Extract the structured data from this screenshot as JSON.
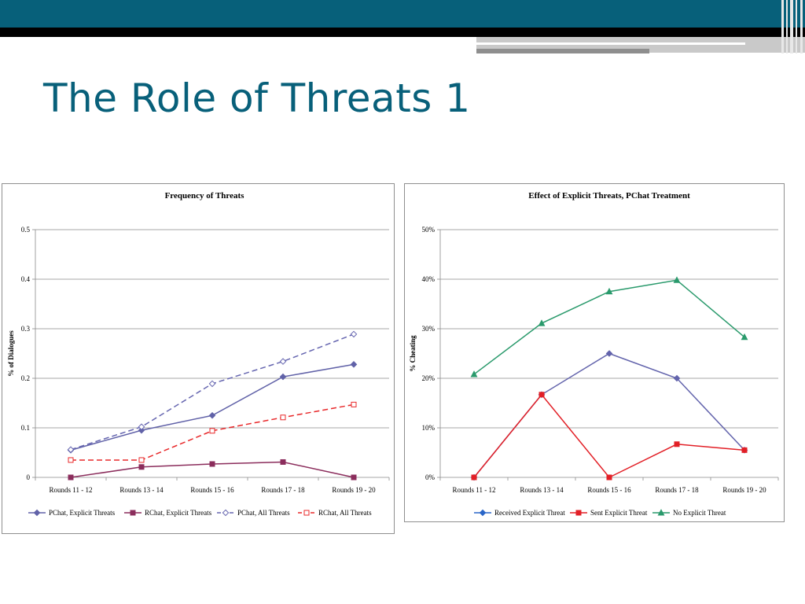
{
  "slide": {
    "title": "The Role of Threats 1"
  },
  "colors": {
    "header_teal": "#07607a",
    "title": "#08607a"
  },
  "chart_data": [
    {
      "type": "line",
      "title": "Frequency of Threats",
      "ylabel": "% of Dialogues",
      "xlabel": "",
      "categories": [
        "Rounds 11 - 12",
        "Rounds 13 - 14",
        "Rounds 15 - 16",
        "Rounds 17 - 18",
        "Rounds 19 - 20"
      ],
      "ylim": [
        0,
        0.5
      ],
      "yticks": [
        0,
        0.1,
        0.2,
        0.3,
        0.4,
        0.5
      ],
      "ytick_labels": [
        "0",
        "0.1",
        "0.2",
        "0.3",
        "0.4",
        "0.5"
      ],
      "grid": true,
      "legend": "bottom",
      "series": [
        {
          "name": "PChat, Explicit Threats",
          "values": [
            0.055,
            0.095,
            0.125,
            0.203,
            0.228
          ],
          "color": "#6162a8",
          "marker": "diamond-filled",
          "dash": "solid"
        },
        {
          "name": "RChat, Explicit Threats",
          "values": [
            0.0,
            0.021,
            0.027,
            0.031,
            0.0
          ],
          "color": "#8b2d5c",
          "marker": "square-filled",
          "dash": "solid"
        },
        {
          "name": "PChat, All Threats",
          "values": [
            0.056,
            0.102,
            0.189,
            0.234,
            0.289
          ],
          "color": "#6666b0",
          "marker": "diamond-open",
          "dash": "dashed"
        },
        {
          "name": "RChat, All Threats",
          "values": [
            0.035,
            0.035,
            0.094,
            0.121,
            0.147
          ],
          "color": "#e8282a",
          "marker": "square-open",
          "dash": "dashed"
        }
      ]
    },
    {
      "type": "line",
      "title": "Effect of Explicit Threats, PChat Treatment",
      "ylabel": "% Cheating",
      "xlabel": "",
      "categories": [
        "Rounds 11 - 12",
        "Rounds 13 - 14",
        "Rounds 15 - 16",
        "Rounds 17 - 18",
        "Rounds 19 - 20"
      ],
      "ylim": [
        0,
        0.5
      ],
      "yticks": [
        0,
        0.1,
        0.2,
        0.3,
        0.4,
        0.5
      ],
      "ytick_labels": [
        "0%",
        "10%",
        "20%",
        "30%",
        "40%",
        "50%"
      ],
      "grid": true,
      "legend": "bottom",
      "series": [
        {
          "name": "Received Explicit Threat",
          "values": [
            0.0,
            0.167,
            0.25,
            0.2,
            0.055
          ],
          "color": "#6364ac",
          "legend_color": "#2a66c8",
          "marker": "diamond-filled",
          "dash": "solid"
        },
        {
          "name": "Sent Explicit Threat",
          "values": [
            0.0,
            0.167,
            0.0,
            0.067,
            0.055
          ],
          "color": "#e21f26",
          "marker": "square-filled",
          "dash": "solid"
        },
        {
          "name": "No Explicit Threat",
          "values": [
            0.208,
            0.311,
            0.375,
            0.398,
            0.283
          ],
          "color": "#2a9a6c",
          "marker": "triangle-filled",
          "dash": "solid"
        }
      ]
    }
  ]
}
